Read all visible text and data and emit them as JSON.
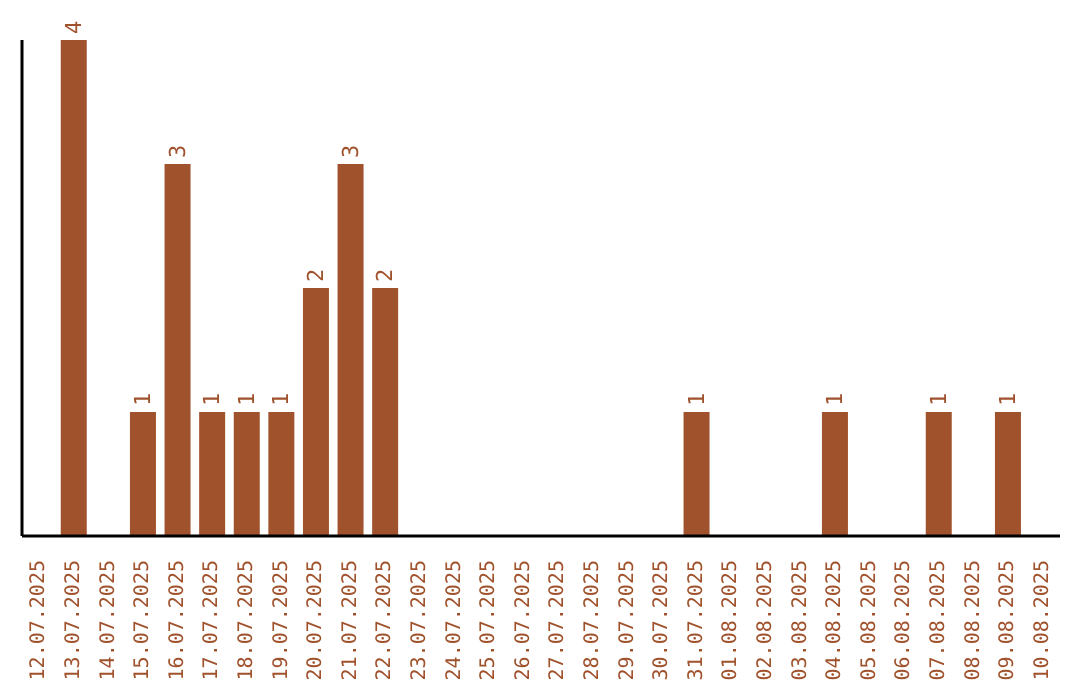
{
  "chart_data": {
    "type": "bar",
    "categories": [
      "12.07.2025",
      "13.07.2025",
      "14.07.2025",
      "15.07.2025",
      "16.07.2025",
      "17.07.2025",
      "18.07.2025",
      "19.07.2025",
      "20.07.2025",
      "21.07.2025",
      "22.07.2025",
      "23.07.2025",
      "24.07.2025",
      "25.07.2025",
      "26.07.2025",
      "27.07.2025",
      "28.07.2025",
      "29.07.2025",
      "30.07.2025",
      "31.07.2025",
      "01.08.2025",
      "02.08.2025",
      "03.08.2025",
      "04.08.2025",
      "05.08.2025",
      "06.08.2025",
      "07.08.2025",
      "08.08.2025",
      "09.08.2025",
      "10.08.2025"
    ],
    "values": [
      0,
      4,
      0,
      1,
      3,
      1,
      1,
      1,
      2,
      3,
      2,
      0,
      0,
      0,
      0,
      0,
      0,
      0,
      0,
      1,
      0,
      0,
      0,
      1,
      0,
      0,
      1,
      0,
      1,
      0
    ],
    "value_labels": [
      null,
      "4",
      null,
      "1",
      "3",
      "1",
      "1",
      "1",
      "2",
      "3",
      "2",
      null,
      null,
      null,
      null,
      null,
      null,
      null,
      null,
      "1",
      null,
      null,
      null,
      "1",
      null,
      null,
      "1",
      null,
      "1",
      null
    ],
    "color": "#a0522d",
    "ylim": [
      0,
      4
    ],
    "tick_labels": "x",
    "grid": false,
    "legend": false
  }
}
